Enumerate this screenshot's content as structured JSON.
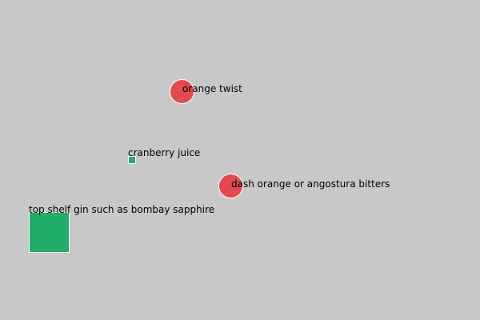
{
  "colors": {
    "background": "#c8c8c8",
    "circle_fill": "#e34a4f",
    "square_fill": "#22ad6a",
    "outline": "#ffffff",
    "text": "#000000"
  },
  "nodes": [
    {
      "id": "orange-twist",
      "label": "orange twist",
      "shape": "circle",
      "color": "#e34a4f"
    },
    {
      "id": "cranberry",
      "label": "cranberry juice",
      "shape": "square",
      "color": "#22ad6a"
    },
    {
      "id": "bitters",
      "label": "dash orange or angostura bitters",
      "shape": "circle",
      "color": "#e34a4f"
    },
    {
      "id": "gin",
      "label": "top shelf gin such as bombay sapphire",
      "shape": "square",
      "color": "#22ad6a"
    }
  ]
}
